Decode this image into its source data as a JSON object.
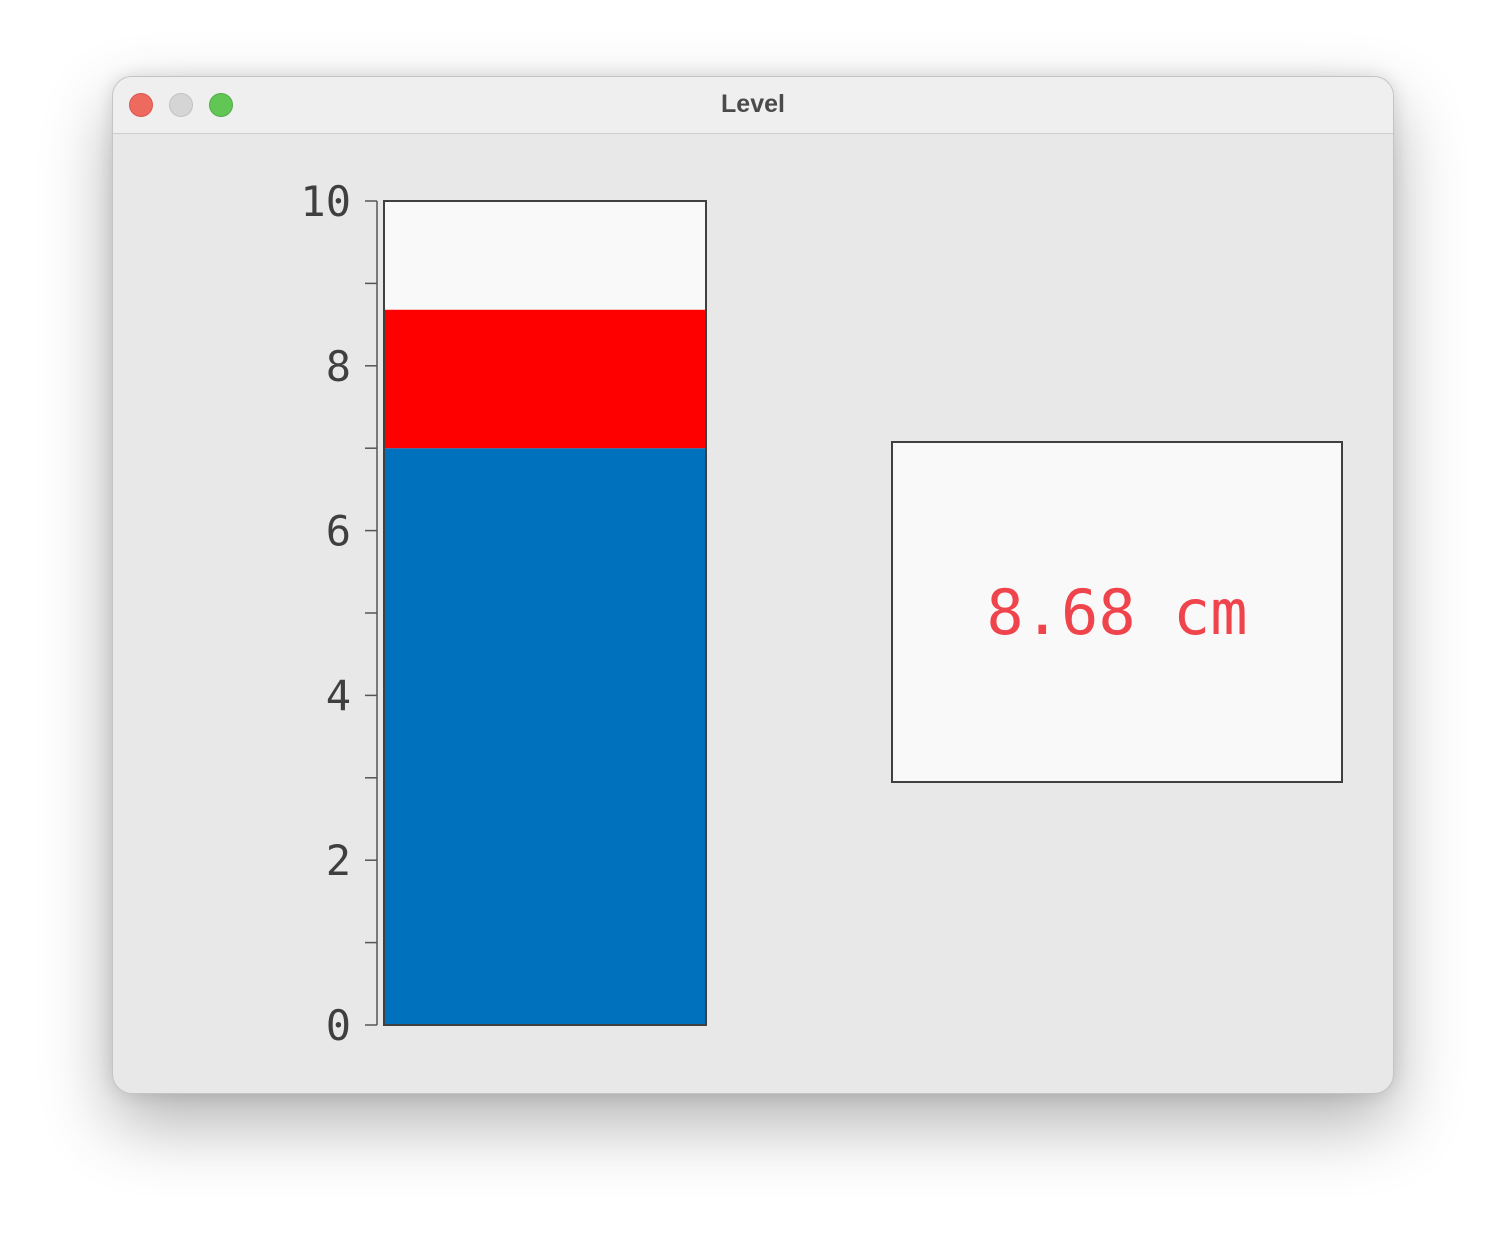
{
  "window": {
    "title": "Level"
  },
  "colors": {
    "level_fill": "#0072bd",
    "upper_band": "#ff0000",
    "empty": "#f9f9f9",
    "readout_text": "#f0444c"
  },
  "chart_data": {
    "type": "bar",
    "orientation": "vertical",
    "ylim": [
      0,
      10
    ],
    "yticks": [
      "0",
      "2",
      "4",
      "6",
      "8",
      "10"
    ],
    "minor_tick_step": 1,
    "segments": [
      {
        "from": 0,
        "to": 7,
        "color": "#0072bd"
      },
      {
        "from": 7,
        "to": 8.68,
        "color": "#ff0000"
      }
    ],
    "value": 8.68
  },
  "readout": {
    "text": "8.68 cm"
  }
}
